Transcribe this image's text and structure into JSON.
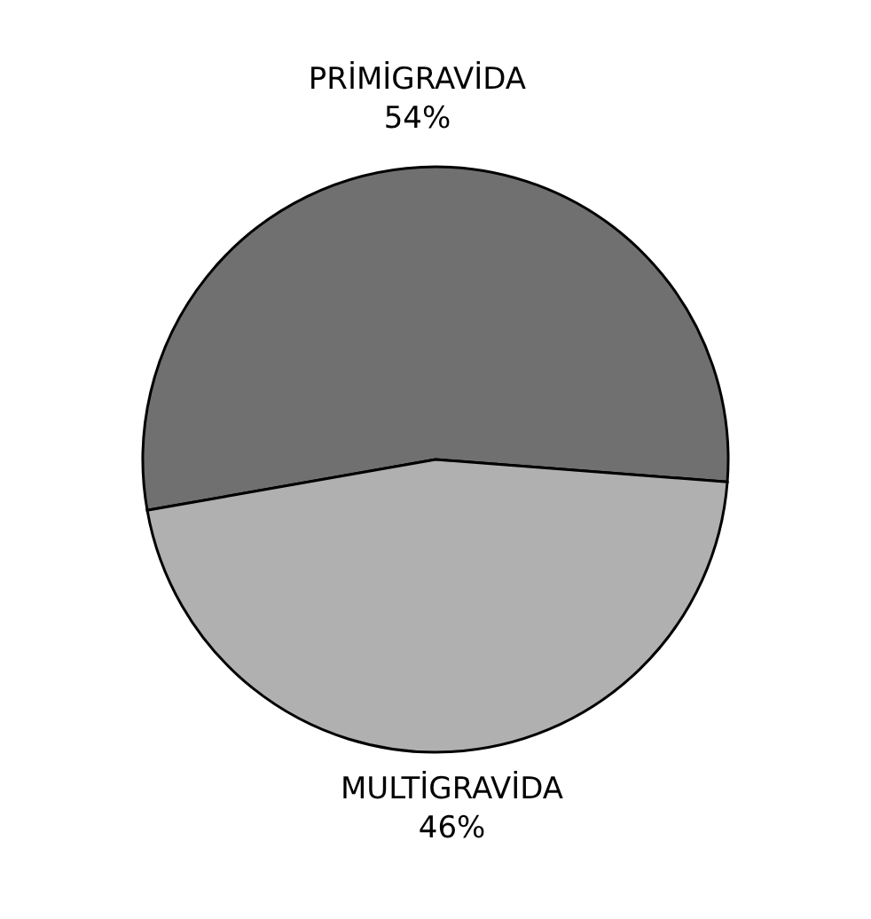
{
  "chart_data": {
    "type": "pie",
    "categories": [
      "PRİMİGRAVİDA",
      "MULTİGRAVİDA"
    ],
    "values": [
      54,
      46
    ],
    "value_labels": [
      "54%",
      "46%"
    ],
    "colors": [
      "#707070",
      "#b0b0b0"
    ]
  }
}
